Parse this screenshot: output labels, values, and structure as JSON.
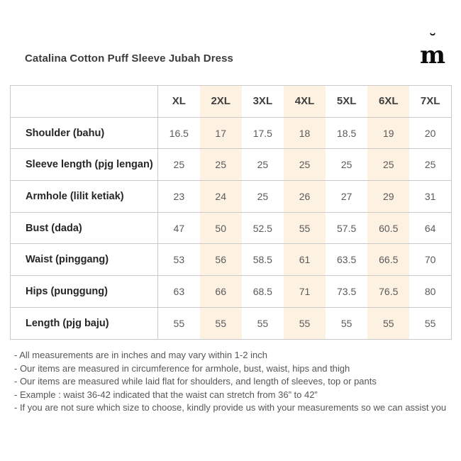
{
  "page": {
    "title": "Catalina Cotton Puff Sleeve Jubah Dress"
  },
  "logo": {
    "name": "brand-logo-m-breve",
    "letter": "m",
    "accent": "˘"
  },
  "table": {
    "columns": [
      "XL",
      "2XL",
      "3XL",
      "4XL",
      "5XL",
      "6XL",
      "7XL"
    ],
    "highlighted_columns": [
      "2XL",
      "4XL",
      "6XL"
    ],
    "rows": [
      {
        "label": "Shoulder (bahu)",
        "values": [
          "16.5",
          "17",
          "17.5",
          "18",
          "18.5",
          "19",
          "20"
        ]
      },
      {
        "label": "Sleeve length (pjg lengan)",
        "values": [
          "25",
          "25",
          "25",
          "25",
          "25",
          "25",
          "25"
        ]
      },
      {
        "label": "Armhole (lilit ketiak)",
        "values": [
          "23",
          "24",
          "25",
          "26",
          "27",
          "29",
          "31"
        ]
      },
      {
        "label": "Bust (dada)",
        "values": [
          "47",
          "50",
          "52.5",
          "55",
          "57.5",
          "60.5",
          "64"
        ]
      },
      {
        "label": "Waist (pinggang)",
        "values": [
          "53",
          "56",
          "58.5",
          "61",
          "63.5",
          "66.5",
          "70"
        ]
      },
      {
        "label": "Hips (punggung)",
        "values": [
          "63",
          "66",
          "68.5",
          "71",
          "73.5",
          "76.5",
          "80"
        ]
      },
      {
        "label": "Length (pjg baju)",
        "values": [
          "55",
          "55",
          "55",
          "55",
          "55",
          "55",
          "55"
        ]
      }
    ]
  },
  "notes": [
    "- All measurements are in inches and may vary within 1-2 inch",
    "- Our items are measured in circumference for armhole, bust, waist, hips and thigh",
    "- Our items are measured while laid flat for shoulders, and length of sleeves, top or pants",
    "- Example : waist 36-42 indicated that the waist can stretch from 36” to 42”",
    "- If you are not sure which size to choose, kindly provide us with your measurements so we can assist you"
  ],
  "colors": {
    "highlight": "#fdf1e2",
    "border": "#c9c9c9",
    "title_text": "#3c3c3c",
    "label_text": "#262626",
    "value_text": "#5a5a5a",
    "note_text": "#565656"
  }
}
